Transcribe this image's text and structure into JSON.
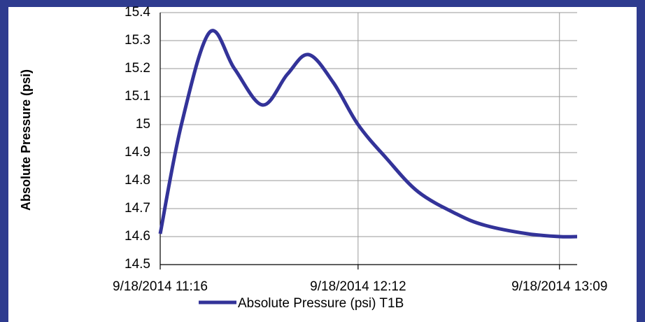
{
  "chart_data": {
    "type": "line",
    "y_label": "Absolute Pressure (psi)",
    "x": [
      "9/18/2014 11:16",
      "9/18/2014 11:22",
      "9/18/2014 11:30",
      "9/18/2014 11:37",
      "9/18/2014 11:45",
      "9/18/2014 11:52",
      "9/18/2014 11:58",
      "9/18/2014 12:05",
      "9/18/2014 12:12",
      "9/18/2014 12:20",
      "9/18/2014 12:29",
      "9/18/2014 12:40",
      "9/18/2014 12:48",
      "9/18/2014 13:00",
      "9/18/2014 13:09",
      "9/18/2014 13:14"
    ],
    "series": [
      {
        "name": "Absolute Pressure (psi) T1B",
        "color": "#333399",
        "values": [
          14.61,
          15.0,
          15.33,
          15.2,
          15.07,
          15.18,
          15.25,
          15.15,
          15.0,
          14.88,
          14.76,
          14.68,
          14.64,
          14.61,
          14.6,
          14.6
        ]
      }
    ],
    "xlim": [
      "9/18/2014 11:16",
      "9/18/2014 13:14"
    ],
    "xticks": [
      "9/18/2014 11:16",
      "9/18/2014 12:12",
      "9/18/2014 13:09"
    ],
    "ylim": [
      14.5,
      15.4
    ],
    "yticks": [
      14.5,
      14.6,
      14.7,
      14.8,
      14.9,
      15,
      15.1,
      15.2,
      15.3,
      15.4
    ],
    "grid": true,
    "legend": "bottom"
  }
}
